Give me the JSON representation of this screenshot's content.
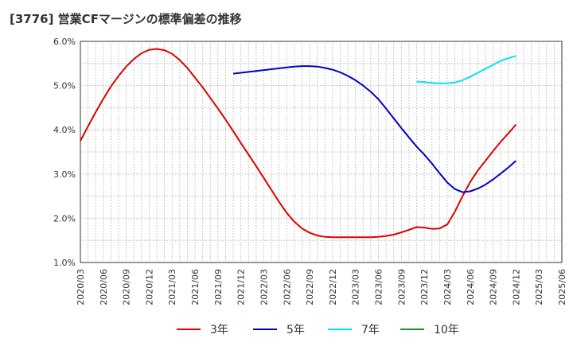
{
  "chart_data": {
    "type": "line",
    "title": "[3776]  営業CFマージンの標準偏差の推移",
    "x_categories": [
      "2020/03",
      "2020/06",
      "2020/09",
      "2020/12",
      "2021/03",
      "2021/06",
      "2021/09",
      "2021/12",
      "2022/03",
      "2022/06",
      "2022/09",
      "2022/12",
      "2023/03",
      "2023/06",
      "2023/09",
      "2023/12",
      "2024/03",
      "2024/06",
      "2024/09",
      "2024/12",
      "2025/03",
      "2025/06"
    ],
    "y_ticks": [
      "1.0%",
      "2.0%",
      "3.0%",
      "4.0%",
      "5.0%",
      "6.0%"
    ],
    "ylim": [
      1.0,
      6.0
    ],
    "y_unit": "%",
    "grid": true,
    "legend_position": "bottom",
    "series": [
      {
        "name": "3年",
        "color": "#e00000",
        "x": [
          "2020/03",
          "2020/04",
          "2020/05",
          "2020/06",
          "2020/07",
          "2020/08",
          "2020/09",
          "2020/10",
          "2020/11",
          "2020/12",
          "2021/01",
          "2021/02",
          "2021/03",
          "2021/04",
          "2021/05",
          "2021/06",
          "2021/07",
          "2021/08",
          "2021/09",
          "2021/10",
          "2021/11",
          "2021/12",
          "2022/01",
          "2022/02",
          "2022/03",
          "2022/04",
          "2022/05",
          "2022/06",
          "2022/07",
          "2022/08",
          "2022/09",
          "2022/10",
          "2022/11",
          "2022/12",
          "2023/01",
          "2023/02",
          "2023/03",
          "2023/04",
          "2023/05",
          "2023/06",
          "2023/07",
          "2023/08",
          "2023/09",
          "2023/10",
          "2023/11",
          "2023/12",
          "2024/01",
          "2024/02",
          "2024/03",
          "2024/04",
          "2024/05",
          "2024/06",
          "2024/07",
          "2024/08",
          "2024/09",
          "2024/10",
          "2024/11",
          "2024/12"
        ],
        "values": [
          3.75,
          4.08,
          4.4,
          4.7,
          4.98,
          5.22,
          5.43,
          5.6,
          5.73,
          5.81,
          5.83,
          5.8,
          5.72,
          5.58,
          5.4,
          5.18,
          4.96,
          4.72,
          4.48,
          4.23,
          3.97,
          3.7,
          3.44,
          3.18,
          2.91,
          2.64,
          2.37,
          2.12,
          1.92,
          1.77,
          1.67,
          1.61,
          1.58,
          1.57,
          1.57,
          1.57,
          1.57,
          1.57,
          1.57,
          1.58,
          1.6,
          1.63,
          1.68,
          1.74,
          1.8,
          1.79,
          1.76,
          1.77,
          1.86,
          2.15,
          2.5,
          2.82,
          3.08,
          3.3,
          3.52,
          3.73,
          3.92,
          4.12
        ]
      },
      {
        "name": "5年",
        "color": "#0000cc",
        "x": [
          "2021/11",
          "2021/12",
          "2022/01",
          "2022/02",
          "2022/03",
          "2022/04",
          "2022/05",
          "2022/06",
          "2022/07",
          "2022/08",
          "2022/09",
          "2022/10",
          "2022/11",
          "2022/12",
          "2023/01",
          "2023/02",
          "2023/03",
          "2023/04",
          "2023/05",
          "2023/06",
          "2023/07",
          "2023/08",
          "2023/09",
          "2023/10",
          "2023/11",
          "2023/12",
          "2024/01",
          "2024/02",
          "2024/03",
          "2024/04",
          "2024/05",
          "2024/06",
          "2024/07",
          "2024/08",
          "2024/09",
          "2024/10",
          "2024/11",
          "2024/12"
        ],
        "values": [
          5.27,
          5.29,
          5.31,
          5.33,
          5.35,
          5.37,
          5.39,
          5.41,
          5.43,
          5.44,
          5.44,
          5.43,
          5.4,
          5.36,
          5.3,
          5.22,
          5.12,
          5.0,
          4.86,
          4.69,
          4.48,
          4.26,
          4.04,
          3.83,
          3.62,
          3.44,
          3.24,
          3.02,
          2.81,
          2.66,
          2.59,
          2.61,
          2.67,
          2.76,
          2.88,
          3.01,
          3.15,
          3.3
        ]
      },
      {
        "name": "7年",
        "color": "#00e5ee",
        "x": [
          "2023/11",
          "2023/12",
          "2024/01",
          "2024/02",
          "2024/03",
          "2024/04",
          "2024/05",
          "2024/06",
          "2024/07",
          "2024/08",
          "2024/09",
          "2024/10",
          "2024/11",
          "2024/12"
        ],
        "values": [
          5.09,
          5.08,
          5.06,
          5.05,
          5.05,
          5.07,
          5.12,
          5.2,
          5.29,
          5.38,
          5.47,
          5.56,
          5.62,
          5.67
        ]
      },
      {
        "name": "10年",
        "color": "#228b22",
        "x": [],
        "values": []
      }
    ]
  }
}
